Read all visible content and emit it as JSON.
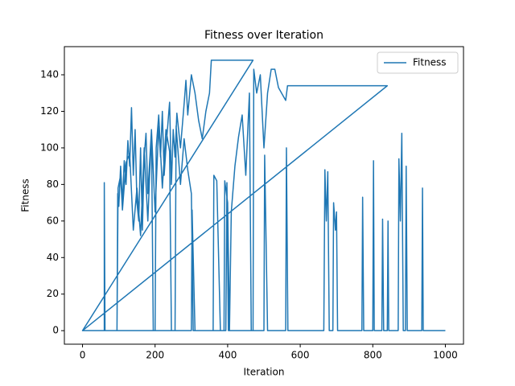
{
  "chart_data": {
    "type": "line",
    "title": "Fitness over Iteration",
    "x_label": "Iteration",
    "y_label": "Fitness",
    "x": [
      0,
      60,
      60,
      62,
      95,
      97,
      100,
      105,
      110,
      115,
      120,
      125,
      130,
      135,
      140,
      145,
      150,
      155,
      160,
      165,
      170,
      175,
      180,
      190,
      200,
      210,
      215,
      220,
      225,
      230,
      240,
      245,
      250,
      255,
      260,
      270,
      280,
      285,
      290,
      300,
      310,
      320,
      330,
      340,
      350,
      355,
      470,
      0,
      95,
      98,
      105,
      110,
      120,
      130,
      140,
      150,
      160,
      170,
      180,
      190,
      195,
      200,
      203,
      210,
      220,
      230,
      240,
      245,
      255,
      258,
      270,
      280,
      290,
      300,
      305,
      360,
      362,
      370,
      380,
      390,
      392,
      400,
      405,
      410,
      420,
      430,
      440,
      450,
      460,
      465,
      470,
      472,
      480,
      490,
      500,
      510,
      520,
      530,
      540,
      560,
      565,
      580,
      840,
      0,
      300,
      302,
      310,
      395,
      398,
      402,
      500,
      502,
      510,
      560,
      562,
      566,
      665,
      668,
      672,
      676,
      680,
      690,
      692,
      697,
      700,
      703,
      770,
      772,
      775,
      800,
      802,
      804,
      825,
      827,
      830,
      840,
      842,
      844,
      870,
      872,
      876,
      880,
      884,
      890,
      892,
      895,
      935,
      937,
      939,
      1000
    ],
    "series": [
      {
        "name": "Fitness",
        "color": "#1f77b4",
        "values": [
          0,
          0,
          81,
          0,
          0,
          75,
          68,
          90,
          70,
          93,
          80,
          104,
          90,
          122,
          85,
          110,
          70,
          60,
          100,
          55,
          95,
          108,
          75,
          110,
          65,
          112,
          95,
          120,
          85,
          100,
          125,
          80,
          110,
          95,
          119,
          100,
          124,
          137,
          118,
          140,
          130,
          115,
          105,
          120,
          130,
          148,
          148,
          0,
          0,
          78,
          85,
          66,
          92,
          97,
          55,
          78,
          52,
          100,
          60,
          110,
          0,
          0,
          100,
          118,
          78,
          110,
          98,
          0,
          0,
          112,
          80,
          105,
          88,
          75,
          0,
          0,
          85,
          82,
          0,
          0,
          82,
          70,
          0,
          65,
          90,
          106,
          118,
          85,
          130,
          0,
          0,
          143,
          130,
          140,
          100,
          130,
          143,
          143,
          133,
          126,
          134,
          134,
          134,
          0,
          0,
          66,
          0,
          0,
          81,
          0,
          0,
          96,
          0,
          0,
          100,
          0,
          0,
          88,
          60,
          87,
          0,
          0,
          70,
          55,
          65,
          0,
          0,
          73,
          0,
          0,
          93,
          0,
          0,
          61,
          0,
          0,
          60,
          0,
          0,
          94,
          60,
          108,
          0,
          0,
          90,
          0,
          0,
          78,
          0,
          0
        ]
      }
    ],
    "xlim": [
      -50,
      1050
    ],
    "ylim": [
      -7.4,
      155.4
    ],
    "xticks": [
      0,
      200,
      400,
      600,
      800,
      1000
    ],
    "yticks": [
      0,
      20,
      40,
      60,
      80,
      100,
      120,
      140
    ],
    "legend": "upper right"
  }
}
